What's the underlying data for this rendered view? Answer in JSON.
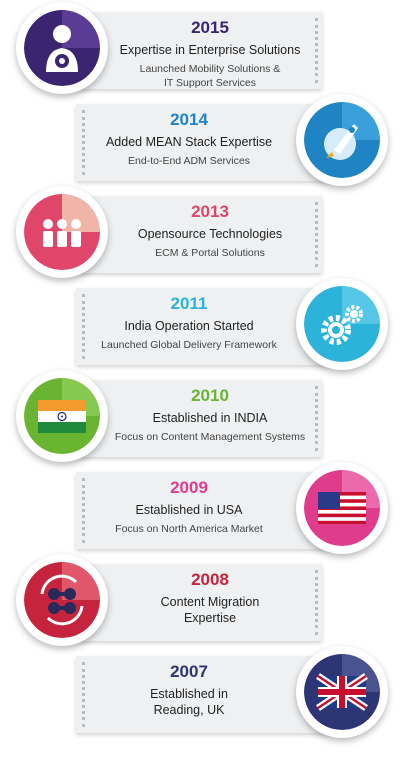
{
  "colors": {
    "purple": "#3b2470",
    "blue": "#1f84c4",
    "pink": "#e0456a",
    "teal": "#2bb3d9",
    "green": "#69b430",
    "magenta": "#e03c8e",
    "crimson": "#c5233e",
    "navy": "#2e3574"
  },
  "timeline": [
    {
      "year": "2015",
      "title": "Expertise in Enterprise Solutions",
      "sub": "Launched Mobility Solutions &\nIT Support Services",
      "icon": "user-gear-icon"
    },
    {
      "year": "2014",
      "title": "Added MEAN Stack Expertise",
      "sub": "End-to-End ADM Services",
      "icon": "rocket-icon"
    },
    {
      "year": "2013",
      "title": "Opensource Technologies",
      "sub": "ECM & Portal Solutions",
      "icon": "people-icon"
    },
    {
      "year": "2011",
      "title": "India Operation Started",
      "sub": "Launched Global Delivery Framework",
      "icon": "gears-icon"
    },
    {
      "year": "2010",
      "title": "Established in INDIA",
      "sub": "Focus on Content Management Systems",
      "icon": "india-flag-icon"
    },
    {
      "year": "2009",
      "title": "Established in USA",
      "sub": "Focus on North America Market",
      "icon": "usa-flag-icon"
    },
    {
      "year": "2008",
      "title": "Content Migration\nExpertise",
      "sub": "",
      "icon": "migration-icon"
    },
    {
      "year": "2007",
      "title": "Established in\nReading, UK",
      "sub": "",
      "icon": "uk-flag-icon"
    }
  ]
}
